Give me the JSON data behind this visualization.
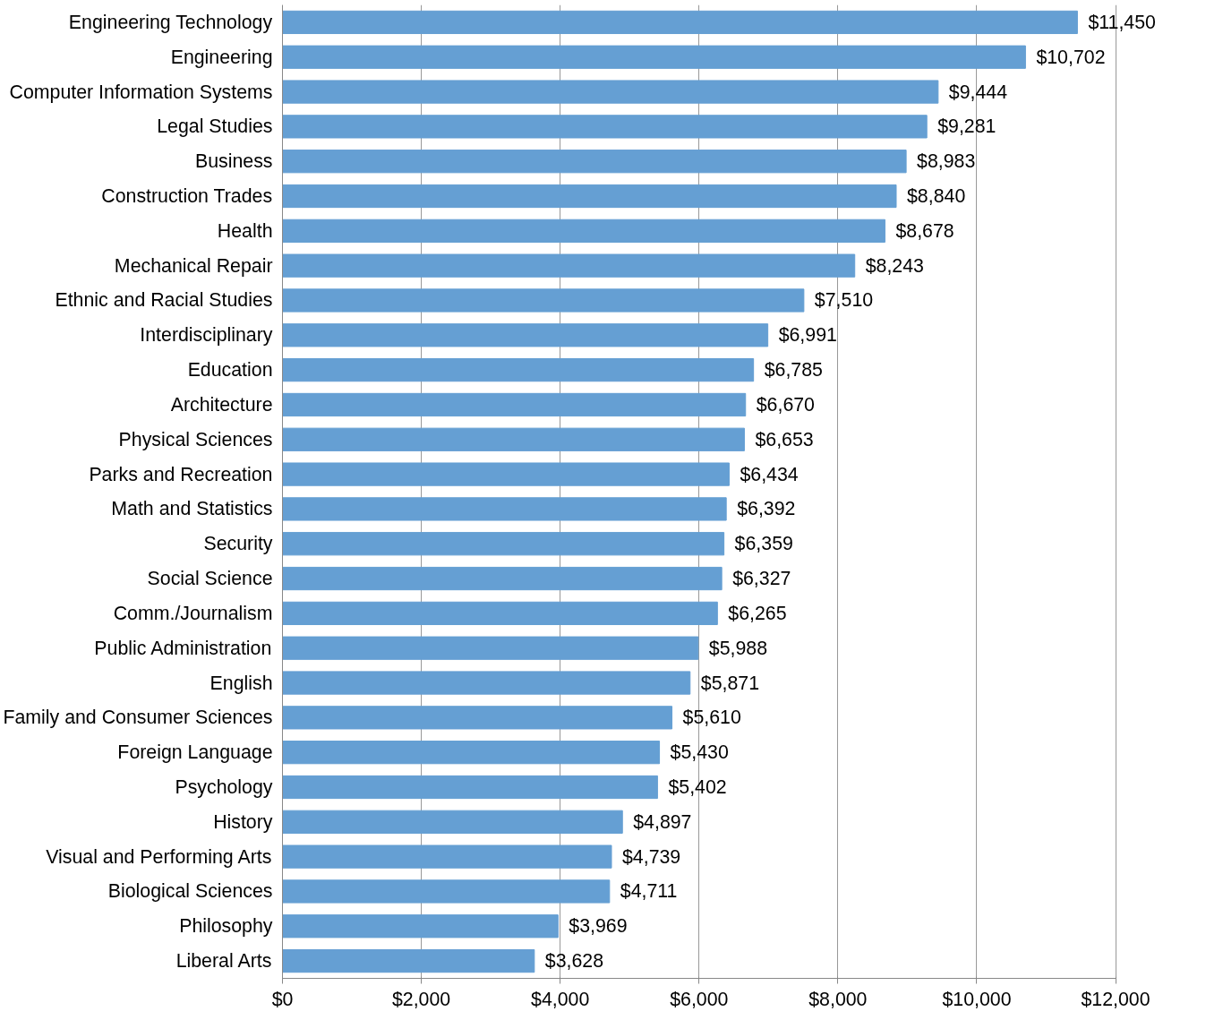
{
  "chart_data": {
    "type": "bar",
    "orientation": "horizontal",
    "categories": [
      "Engineering Technology",
      "Engineering",
      "Computer Information Systems",
      "Legal Studies",
      "Business",
      "Construction Trades",
      "Health",
      "Mechanical Repair",
      "Ethnic and Racial Studies",
      "Interdisciplinary",
      "Education",
      "Architecture",
      "Physical Sciences",
      "Parks and Recreation",
      "Math and Statistics",
      "Security",
      "Social Science",
      "Comm./Journalism",
      "Public Administration",
      "English",
      "Family and Consumer Sciences",
      "Foreign Language",
      "Psychology",
      "History",
      "Visual and Performing Arts",
      "Biological Sciences",
      "Philosophy",
      "Liberal Arts"
    ],
    "values": [
      11450,
      10702,
      9444,
      9281,
      8983,
      8840,
      8678,
      8243,
      7510,
      6991,
      6785,
      6670,
      6653,
      6434,
      6392,
      6359,
      6327,
      6265,
      5988,
      5871,
      5610,
      5430,
      5402,
      4897,
      4739,
      4711,
      3969,
      3628
    ],
    "value_labels": [
      "$11,450",
      "$10,702",
      "$9,444",
      "$9,281",
      "$8,983",
      "$8,840",
      "$8,678",
      "$8,243",
      "$7,510",
      "$6,991",
      "$6,785",
      "$6,670",
      "$6,653",
      "$6,434",
      "$6,392",
      "$6,359",
      "$6,327",
      "$6,265",
      "$5,988",
      "$5,871",
      "$5,610",
      "$5,430",
      "$5,402",
      "$4,897",
      "$4,739",
      "$4,711",
      "$3,969",
      "$3,628"
    ],
    "color": "#659fd3",
    "xlim": [
      0,
      12000
    ],
    "xticks": [
      {
        "value": 0,
        "label": "$0"
      },
      {
        "value": 2000,
        "label": "$2,000"
      },
      {
        "value": 4000,
        "label": "$4,000"
      },
      {
        "value": 6000,
        "label": "$6,000"
      },
      {
        "value": 8000,
        "label": "$8,000"
      },
      {
        "value": 10000,
        "label": "$10,000"
      },
      {
        "value": 12000,
        "label": "$12,000"
      }
    ],
    "grid": "x"
  }
}
